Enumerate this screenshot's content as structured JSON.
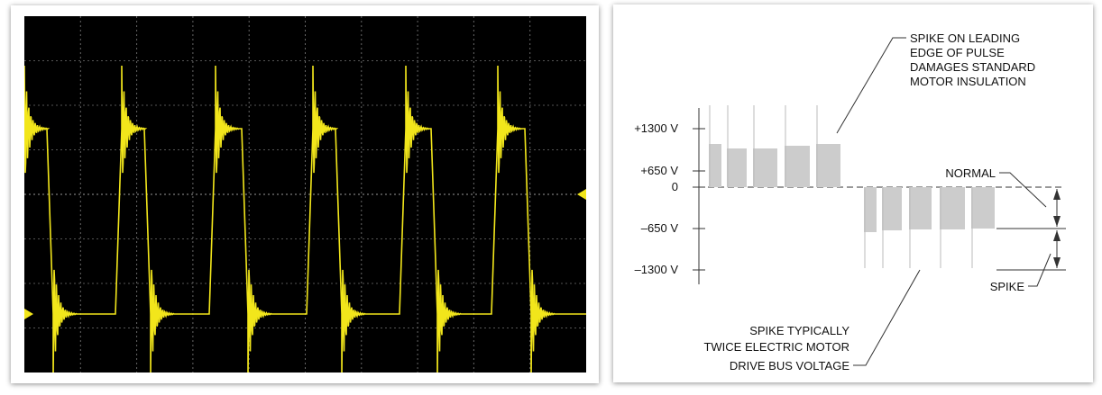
{
  "diagram": {
    "axis_labels": [
      "+1300 V",
      "+650 V",
      "0",
      "–650 V",
      "–1300 V"
    ],
    "callouts": {
      "top": [
        "SPIKE ON LEADING",
        "EDGE OF PULSE",
        "DAMAGES STANDARD",
        "MOTOR INSULATION"
      ],
      "normal": "NORMAL",
      "spike": "SPIKE",
      "bottom": [
        "SPIKE TYPICALLY",
        "TWICE ELECTRIC MOTOR",
        "DRIVE BUS VOLTAGE"
      ]
    }
  }
}
